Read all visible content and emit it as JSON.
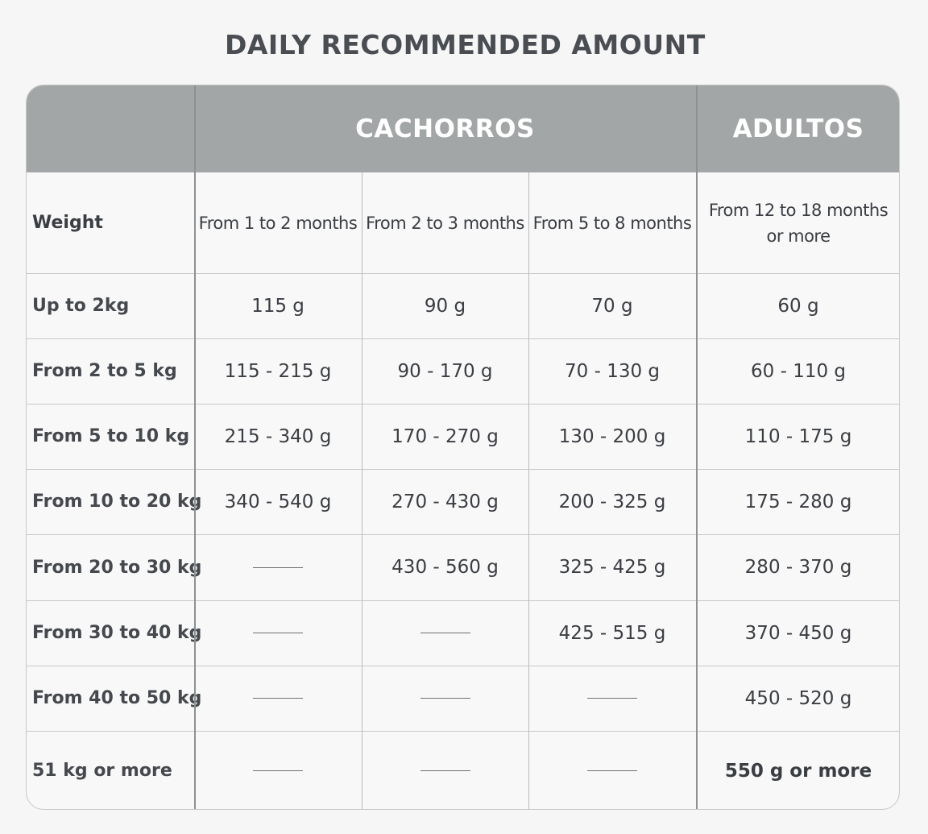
{
  "title": "DAILY RECOMMENDED AMOUNT",
  "groups": {
    "puppies": "CACHORROS",
    "adults": "ADULTOS"
  },
  "column_headers": [
    "Weight",
    "From 1 to 2 months",
    "From 2 to 3 months",
    "From 5 to 8 months",
    "From 12 to 18 months or more"
  ],
  "adult_header_lines": [
    "From 12 to 18 months",
    "or more"
  ],
  "rows": [
    {
      "weight": "Up to 2kg",
      "values": [
        "115 g",
        "90 g",
        "70 g",
        "60 g"
      ]
    },
    {
      "weight": "From 2 to 5 kg",
      "values": [
        "115 - 215 g",
        "90 - 170 g",
        "70 - 130 g",
        "60 - 110 g"
      ]
    },
    {
      "weight": "From 5 to 10 kg",
      "values": [
        "215 - 340 g",
        "170 - 270 g",
        "130 - 200 g",
        "110 - 175 g"
      ]
    },
    {
      "weight": "From 10 to 20 kg",
      "values": [
        "340 - 540 g",
        "270 - 430 g",
        "200 - 325 g",
        "175 - 280 g"
      ]
    },
    {
      "weight": "From 20 to 30 kg",
      "values": [
        null,
        "430 - 560 g",
        "325 - 425 g",
        "280 - 370 g"
      ]
    },
    {
      "weight": "From 30 to 40 kg",
      "values": [
        null,
        null,
        "425 - 515 g",
        "370 - 450 g"
      ]
    },
    {
      "weight": "From 40 to 50 kg",
      "values": [
        null,
        null,
        null,
        "450 - 520 g"
      ]
    },
    {
      "weight": "51 kg or more",
      "values": [
        null,
        null,
        null,
        "550 g or more"
      ]
    }
  ],
  "colors": {
    "header_bg": "#a3a6a6",
    "header_text": "#ffffff",
    "page_bg": "#f6f6f6"
  }
}
